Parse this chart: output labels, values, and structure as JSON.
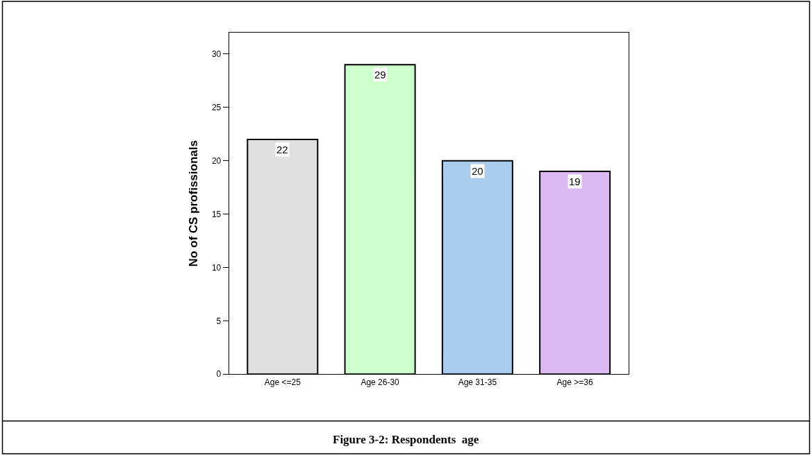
{
  "chart_data": {
    "type": "bar",
    "title": "Figure 3-2: Respondents  age",
    "ylabel": "No of CS profissionals",
    "categories": [
      "Age <=25",
      "Age 26-30",
      "Age 31-35",
      "Age >=36"
    ],
    "values": [
      22,
      29,
      20,
      19
    ],
    "colors": [
      "#e0e0e0",
      "#ccffcc",
      "#aacced",
      "#dcb8f0"
    ],
    "ylim": [
      0,
      32
    ],
    "yticks": [
      0,
      5,
      10,
      15,
      20,
      25,
      30
    ],
    "legend": false,
    "data_labels": true
  }
}
